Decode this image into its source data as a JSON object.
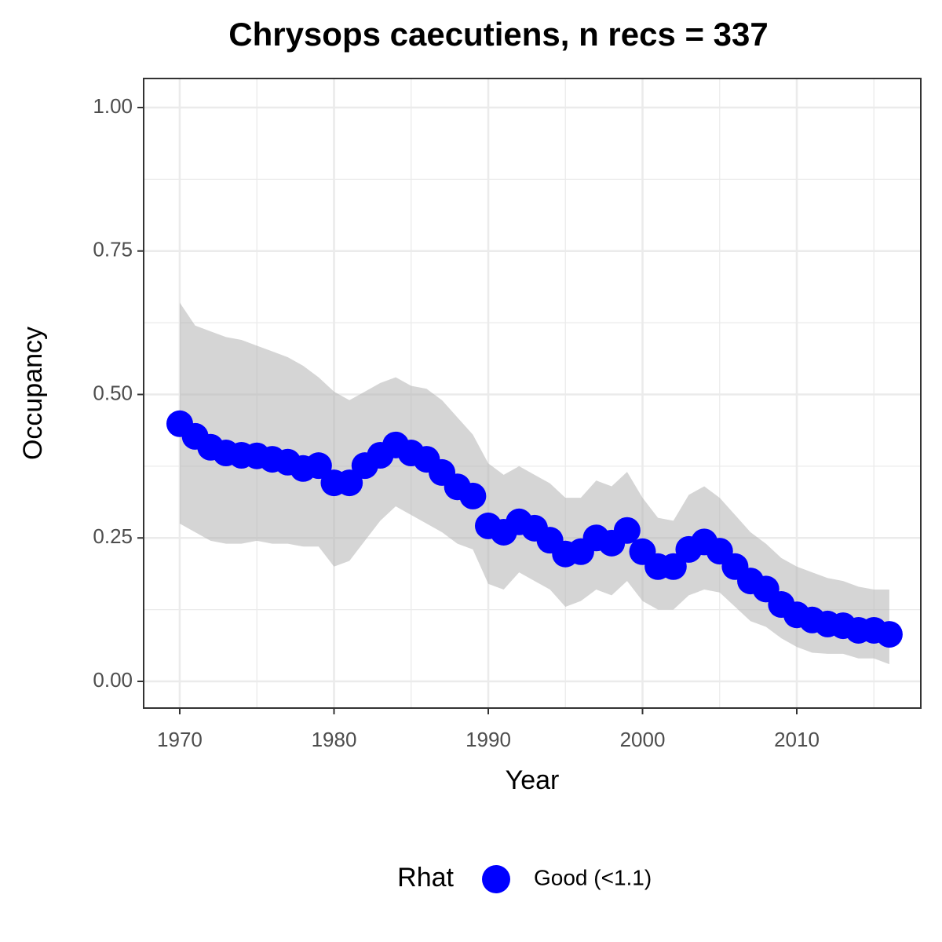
{
  "chart_data": {
    "type": "scatter",
    "title": "Chrysops caecutiens, n recs = 337",
    "x_label": "Year",
    "y_label": "Occupancy",
    "legend_title": "Rhat",
    "x": [
      1970,
      1971,
      1972,
      1973,
      1974,
      1975,
      1976,
      1977,
      1978,
      1979,
      1980,
      1981,
      1982,
      1983,
      1984,
      1985,
      1986,
      1987,
      1988,
      1989,
      1990,
      1991,
      1992,
      1993,
      1994,
      1995,
      1996,
      1997,
      1998,
      1999,
      2000,
      2001,
      2002,
      2003,
      2004,
      2005,
      2006,
      2007,
      2008,
      2009,
      2010,
      2011,
      2012,
      2013,
      2014,
      2015,
      2016
    ],
    "series": [
      {
        "name": "Good (<1.1)",
        "color": "#0000ff",
        "values": [
          0.449,
          0.427,
          0.408,
          0.398,
          0.394,
          0.393,
          0.387,
          0.382,
          0.371,
          0.376,
          0.346,
          0.346,
          0.376,
          0.394,
          0.412,
          0.398,
          0.387,
          0.364,
          0.339,
          0.323,
          0.271,
          0.26,
          0.278,
          0.267,
          0.246,
          0.222,
          0.226,
          0.25,
          0.241,
          0.263,
          0.226,
          0.2,
          0.2,
          0.23,
          0.243,
          0.227,
          0.2,
          0.175,
          0.161,
          0.134,
          0.116,
          0.107,
          0.1,
          0.097,
          0.089,
          0.089,
          0.082
        ]
      }
    ],
    "band": {
      "color": "#b3b3b3",
      "upper": [
        0.66,
        0.62,
        0.61,
        0.6,
        0.595,
        0.585,
        0.575,
        0.565,
        0.55,
        0.53,
        0.505,
        0.49,
        0.505,
        0.52,
        0.53,
        0.515,
        0.51,
        0.49,
        0.46,
        0.43,
        0.38,
        0.36,
        0.375,
        0.36,
        0.345,
        0.32,
        0.32,
        0.35,
        0.34,
        0.365,
        0.32,
        0.285,
        0.28,
        0.325,
        0.34,
        0.32,
        0.29,
        0.26,
        0.24,
        0.215,
        0.2,
        0.19,
        0.18,
        0.175,
        0.165,
        0.16,
        0.16
      ],
      "lower": [
        0.275,
        0.26,
        0.245,
        0.24,
        0.24,
        0.245,
        0.24,
        0.24,
        0.235,
        0.235,
        0.2,
        0.21,
        0.245,
        0.28,
        0.305,
        0.29,
        0.275,
        0.26,
        0.24,
        0.23,
        0.17,
        0.16,
        0.19,
        0.175,
        0.16,
        0.13,
        0.14,
        0.16,
        0.15,
        0.175,
        0.14,
        0.125,
        0.125,
        0.15,
        0.16,
        0.155,
        0.13,
        0.105,
        0.095,
        0.075,
        0.06,
        0.05,
        0.048,
        0.048,
        0.04,
        0.04,
        0.03
      ]
    },
    "xlim": [
      1967.66,
      2018.04
    ],
    "ylim": [
      -0.0465,
      1.0506
    ],
    "xticks": [
      1970,
      1980,
      1990,
      2000,
      2010
    ],
    "yticks": [
      {
        "value": 0,
        "label": "0.00"
      },
      {
        "value": 0.25,
        "label": "0.25"
      },
      {
        "value": 0.5,
        "label": "0.50"
      },
      {
        "value": 0.75,
        "label": "0.75"
      },
      {
        "value": 1,
        "label": "1.00"
      }
    ],
    "xminorticks": [
      1975,
      1985,
      1995,
      2005,
      2015
    ],
    "yminorticks": [
      0.125,
      0.375,
      0.625,
      0.875
    ],
    "grid": true,
    "legend": "bottom"
  }
}
